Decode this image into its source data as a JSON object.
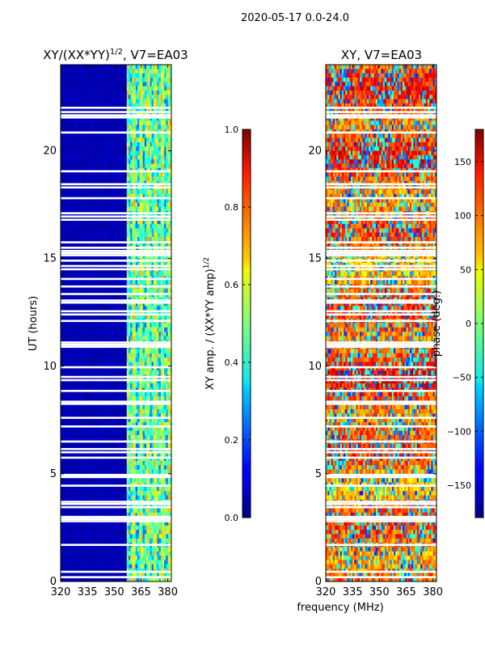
{
  "figure": {
    "suptitle": "2020-05-17 0.0-24.0",
    "xlabel": "frequency (MHz)",
    "colors": {
      "background": "#ffffff",
      "gap": "#ffffff"
    }
  },
  "chart_data": [
    {
      "type": "heatmap",
      "id": "amp",
      "title": "XY/(XX*YY)",
      "title_sup": "1/2",
      "title_suffix": ", V7=EA03",
      "ylabel": "UT (hours)",
      "xlim": [
        320,
        382
      ],
      "ylim": [
        0,
        24
      ],
      "xticks": [
        320,
        335,
        350,
        365,
        380
      ],
      "xtick_labels": [
        "320",
        "335",
        "350",
        "365",
        "380"
      ],
      "yticks": [
        0,
        5,
        10,
        15,
        20
      ],
      "ytick_labels": [
        "0",
        "5",
        "10",
        "15",
        "20"
      ],
      "colorbar": {
        "label": "XY amp. / (XX*YY amp)",
        "label_sup": "1/2",
        "range": [
          0.0,
          1.0
        ],
        "ticks": [
          0.0,
          0.2,
          0.4,
          0.6,
          0.8,
          1.0
        ],
        "tick_labels": [
          "0.0",
          "0.2",
          "0.4",
          "0.6",
          "0.8",
          "1.0"
        ]
      },
      "description": "Low amplitude (~0.05) below 357 MHz; bright channels (0.3-0.6) from 357 to 382 MHz",
      "quiet_level": 0.05,
      "bright_band_start_mhz": 357
    },
    {
      "type": "heatmap",
      "id": "phase",
      "title": "XY, V7=EA03",
      "xlim": [
        320,
        382
      ],
      "ylim": [
        0,
        24
      ],
      "xticks": [
        320,
        335,
        350,
        365,
        380
      ],
      "xtick_labels": [
        "320",
        "335",
        "350",
        "365",
        "380"
      ],
      "yticks": [
        0,
        5,
        10,
        15,
        20
      ],
      "ytick_labels": [
        "0",
        "5",
        "10",
        "15",
        "20"
      ],
      "colorbar": {
        "label": "phase (deg.)",
        "range": [
          -180,
          180
        ],
        "ticks": [
          -150,
          -100,
          -50,
          0,
          50,
          100,
          150
        ],
        "tick_labels": [
          "−150",
          "−100",
          "−50",
          "0",
          "50",
          "100",
          "150"
        ]
      },
      "description": "Phase varies widely across band, mostly orange/red (~100-150 deg) with blue/cyan patches"
    }
  ],
  "gap_rows_ut": [
    0.2,
    0.45,
    1.7,
    2.8,
    2.9,
    3.0,
    3.45,
    3.6,
    3.7,
    4.45,
    4.85,
    4.95,
    5.75,
    6.0,
    6.15,
    6.5,
    7.2,
    7.6,
    8.25,
    8.35,
    8.85,
    9.35,
    9.5,
    9.95,
    10.9,
    11.0,
    11.1,
    12.1,
    12.4,
    12.55,
    12.95,
    13.05,
    13.35,
    13.7,
    14.05,
    14.5,
    14.65,
    14.9,
    15.15,
    15.25,
    15.35,
    15.5,
    15.75,
    16.8,
    16.95,
    17.1,
    17.8,
    18.3,
    18.45,
    19.05,
    20.85,
    21.55,
    21.65,
    21.8,
    22.0
  ]
}
